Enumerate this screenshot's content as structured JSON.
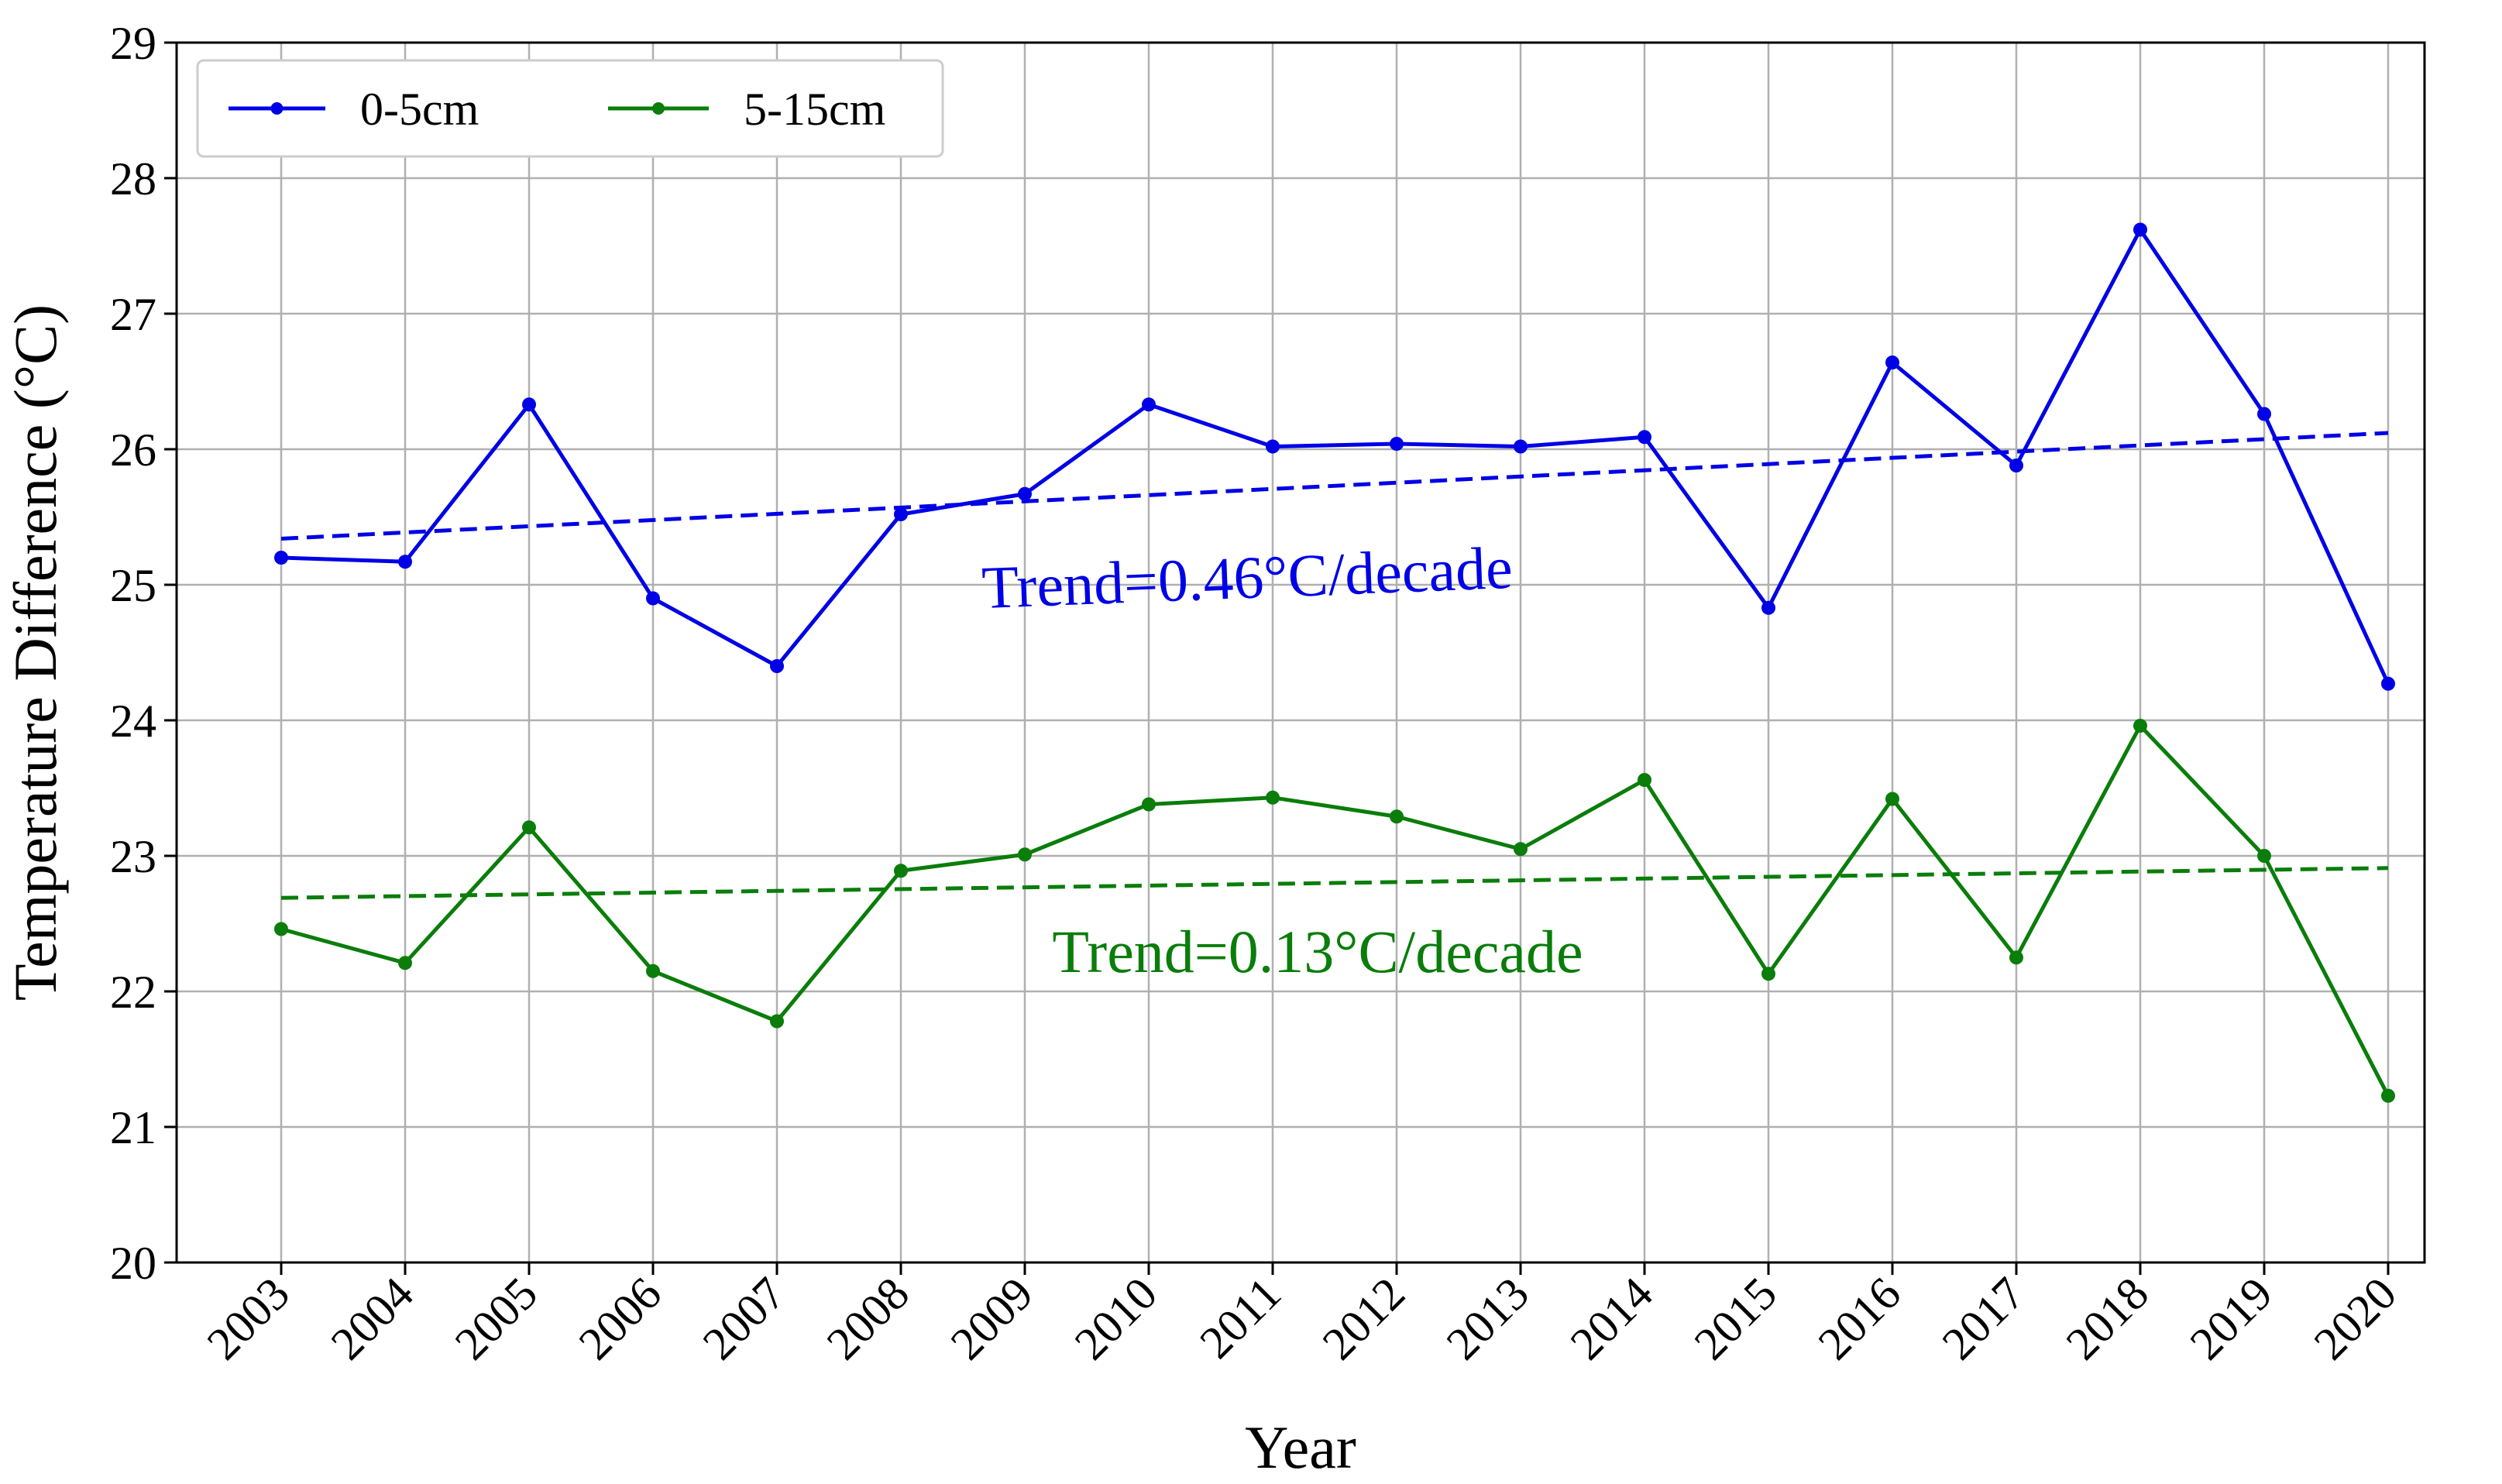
{
  "chart_data": {
    "type": "line",
    "title": "",
    "xlabel": "Year",
    "ylabel": "Temperature Difference (°C)",
    "categories": [
      "2003",
      "2004",
      "2005",
      "2006",
      "2007",
      "2008",
      "2009",
      "2010",
      "2011",
      "2012",
      "2013",
      "2014",
      "2015",
      "2016",
      "2017",
      "2018",
      "2019",
      "2020"
    ],
    "ylim": [
      20,
      29
    ],
    "yticks": [
      "20",
      "21",
      "22",
      "23",
      "24",
      "25",
      "26",
      "27",
      "28",
      "29"
    ],
    "grid": true,
    "legend_position": "top-left",
    "series": [
      {
        "name": "0-5cm",
        "color": "#0000e6",
        "values": [
          25.2,
          25.17,
          26.33,
          24.9,
          24.4,
          25.52,
          25.67,
          26.33,
          26.02,
          26.04,
          26.02,
          26.09,
          24.83,
          26.64,
          25.88,
          27.62,
          26.26,
          24.27
        ],
        "trend": {
          "start": 25.34,
          "end": 26.12,
          "label": "Trend=0.46°C/decade"
        }
      },
      {
        "name": "5-15cm",
        "color": "#0a7d0a",
        "values": [
          22.46,
          22.21,
          23.21,
          22.15,
          21.78,
          22.89,
          23.01,
          23.38,
          23.43,
          23.29,
          23.05,
          23.56,
          22.13,
          23.42,
          22.25,
          23.96,
          23.0,
          21.23
        ],
        "trend": {
          "start": 22.69,
          "end": 22.91,
          "label": "Trend=0.13°C/decade"
        }
      }
    ]
  }
}
